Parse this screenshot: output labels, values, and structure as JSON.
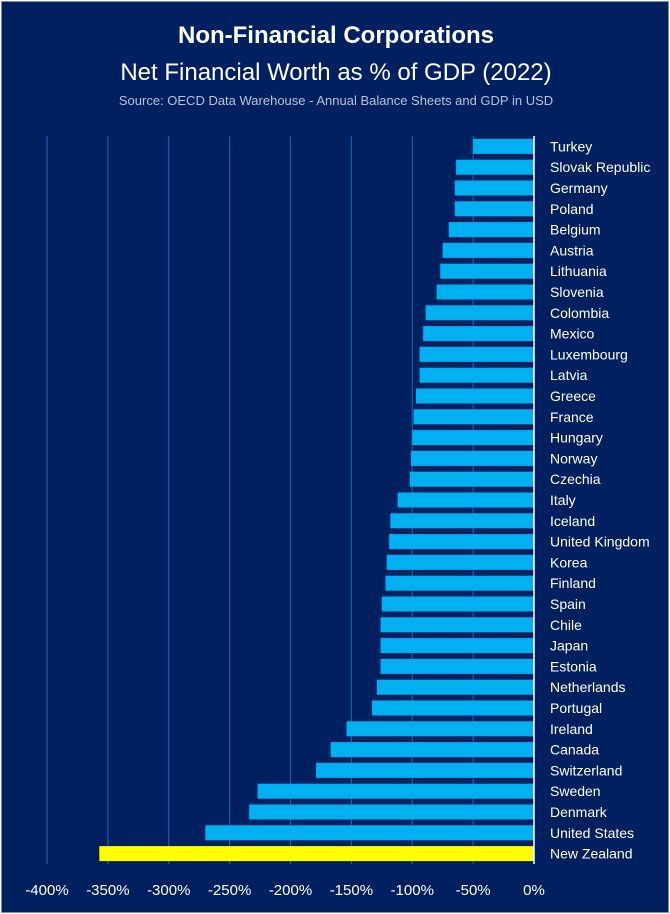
{
  "title_line1": "Non-Financial Corporations",
  "title_line2": "Net Financial Worth as % of GDP (2022)",
  "source": "Source: OECD Data Warehouse - Annual Balance Sheets and GDP in USD",
  "colors": {
    "background": "#002060",
    "bar": "#00B0F0",
    "highlight": "#FFFF00",
    "gridline": "#1F5BA8",
    "axis": "#FFFFFF"
  },
  "chart_data": {
    "type": "bar",
    "orientation": "horizontal",
    "title": "Non-Financial Corporations — Net Financial Worth as % of GDP (2022)",
    "xlabel": "",
    "ylabel": "",
    "xlim": [
      -400,
      0
    ],
    "grid": true,
    "x_ticks": [
      -400,
      -350,
      -300,
      -250,
      -200,
      -150,
      -100,
      -50,
      0
    ],
    "x_tick_labels": [
      "-400%",
      "-350%",
      "-300%",
      "-250%",
      "-200%",
      "-150%",
      "-100%",
      "-50%",
      "0%"
    ],
    "highlight": "New Zealand",
    "categories": [
      "Turkey",
      "Slovak Republic",
      "Germany",
      "Poland",
      "Belgium",
      "Austria",
      "Lithuania",
      "Slovenia",
      "Colombia",
      "Mexico",
      "Luxembourg",
      "Latvia",
      "Greece",
      "France",
      "Hungary",
      "Norway",
      "Czechia",
      "Italy",
      "Iceland",
      "United Kingdom",
      "Korea",
      "Finland",
      "Spain",
      "Chile",
      "Japan",
      "Estonia",
      "Netherlands",
      "Portugal",
      "Ireland",
      "Canada",
      "Switzerland",
      "Sweden",
      "Denmark",
      "United States",
      "New Zealand"
    ],
    "values": [
      -50,
      -64,
      -65,
      -65,
      -70,
      -75,
      -77,
      -80,
      -89,
      -91,
      -94,
      -94,
      -97,
      -99,
      -100,
      -101,
      -102,
      -112,
      -118,
      -119,
      -121,
      -122,
      -125,
      -126,
      -126,
      -126,
      -129,
      -133,
      -154,
      -167,
      -179,
      -227,
      -234,
      -270,
      -357
    ]
  }
}
